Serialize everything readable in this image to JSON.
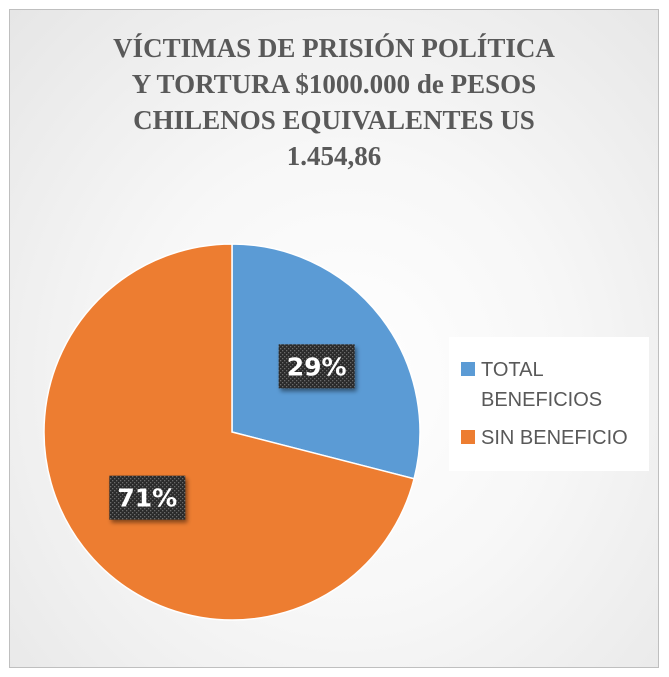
{
  "chart_data": {
    "type": "pie",
    "title_lines": [
      "VÍCTIMAS DE PRISIÓN POLÍTICA",
      "Y TORTURA $1000.000 de PESOS",
      "CHILENOS EQUIVALENTES US",
      "1.454,86"
    ],
    "categories": [
      "TOTAL BENEFICIOS",
      "SIN BENEFICIO"
    ],
    "values": [
      29,
      71
    ],
    "data_labels": [
      "29%",
      "71%"
    ],
    "colors": [
      "#5b9bd5",
      "#ed7d31"
    ],
    "start_angle": "12 o'clock, clockwise",
    "legend_position": "right"
  }
}
